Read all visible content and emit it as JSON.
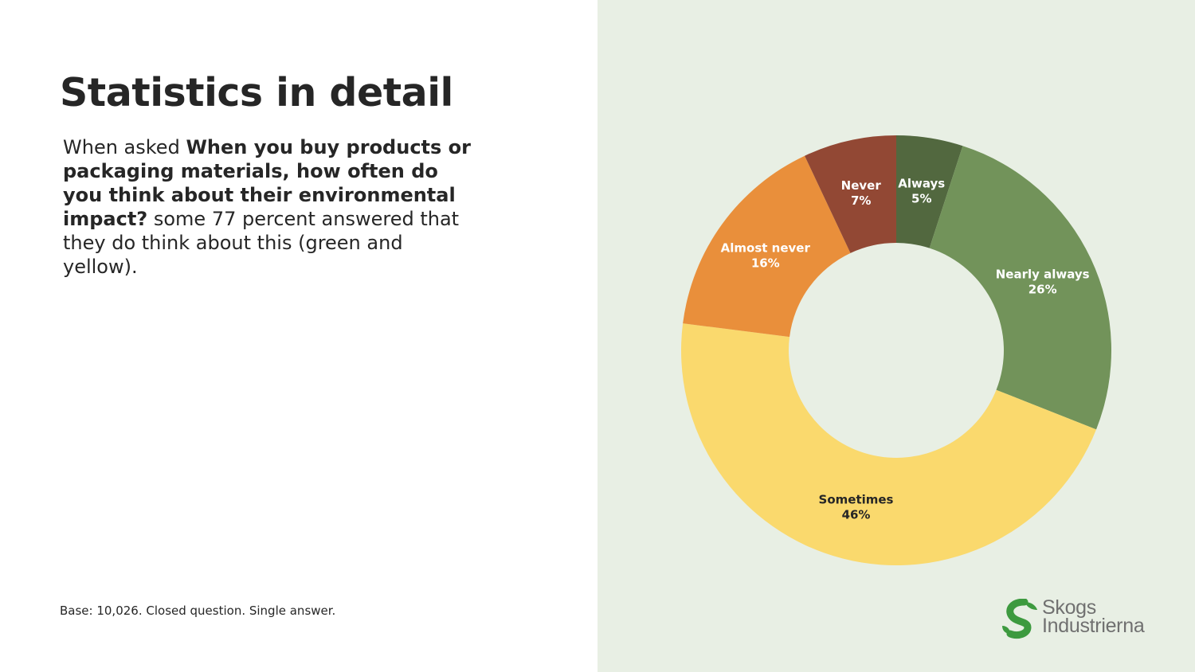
{
  "slide": {
    "title": "Statistics in detail",
    "intro_prefix": "When asked ",
    "question": "When you buy products or packaging materials, how often do you think about their environmental impact?",
    "intro_suffix": " some 77 percent answered that they do think about this (green and yellow).",
    "footnote": "Base: 10,026. Closed question. Single answer."
  },
  "logo": {
    "line1": "Skogs",
    "line2": "Industrierna",
    "icon": "s-leaf-logo-icon",
    "color": "#3d9a3f"
  },
  "chart_data": {
    "type": "pie",
    "donut": true,
    "title": "",
    "slices": [
      {
        "label": "Always",
        "value": 5,
        "display": "5%",
        "color": "#52683f",
        "text_color": "#ffffff"
      },
      {
        "label": "Nearly always",
        "value": 26,
        "display": "26%",
        "color": "#72935a",
        "text_color": "#ffffff"
      },
      {
        "label": "Sometimes",
        "value": 46,
        "display": "46%",
        "color": "#fad96d",
        "text_color": "#262626"
      },
      {
        "label": "Almost never",
        "value": 16,
        "display": "16%",
        "color": "#e98f3b",
        "text_color": "#ffffff"
      },
      {
        "label": "Never",
        "value": 7,
        "display": "7%",
        "color": "#924834",
        "text_color": "#ffffff"
      }
    ]
  }
}
